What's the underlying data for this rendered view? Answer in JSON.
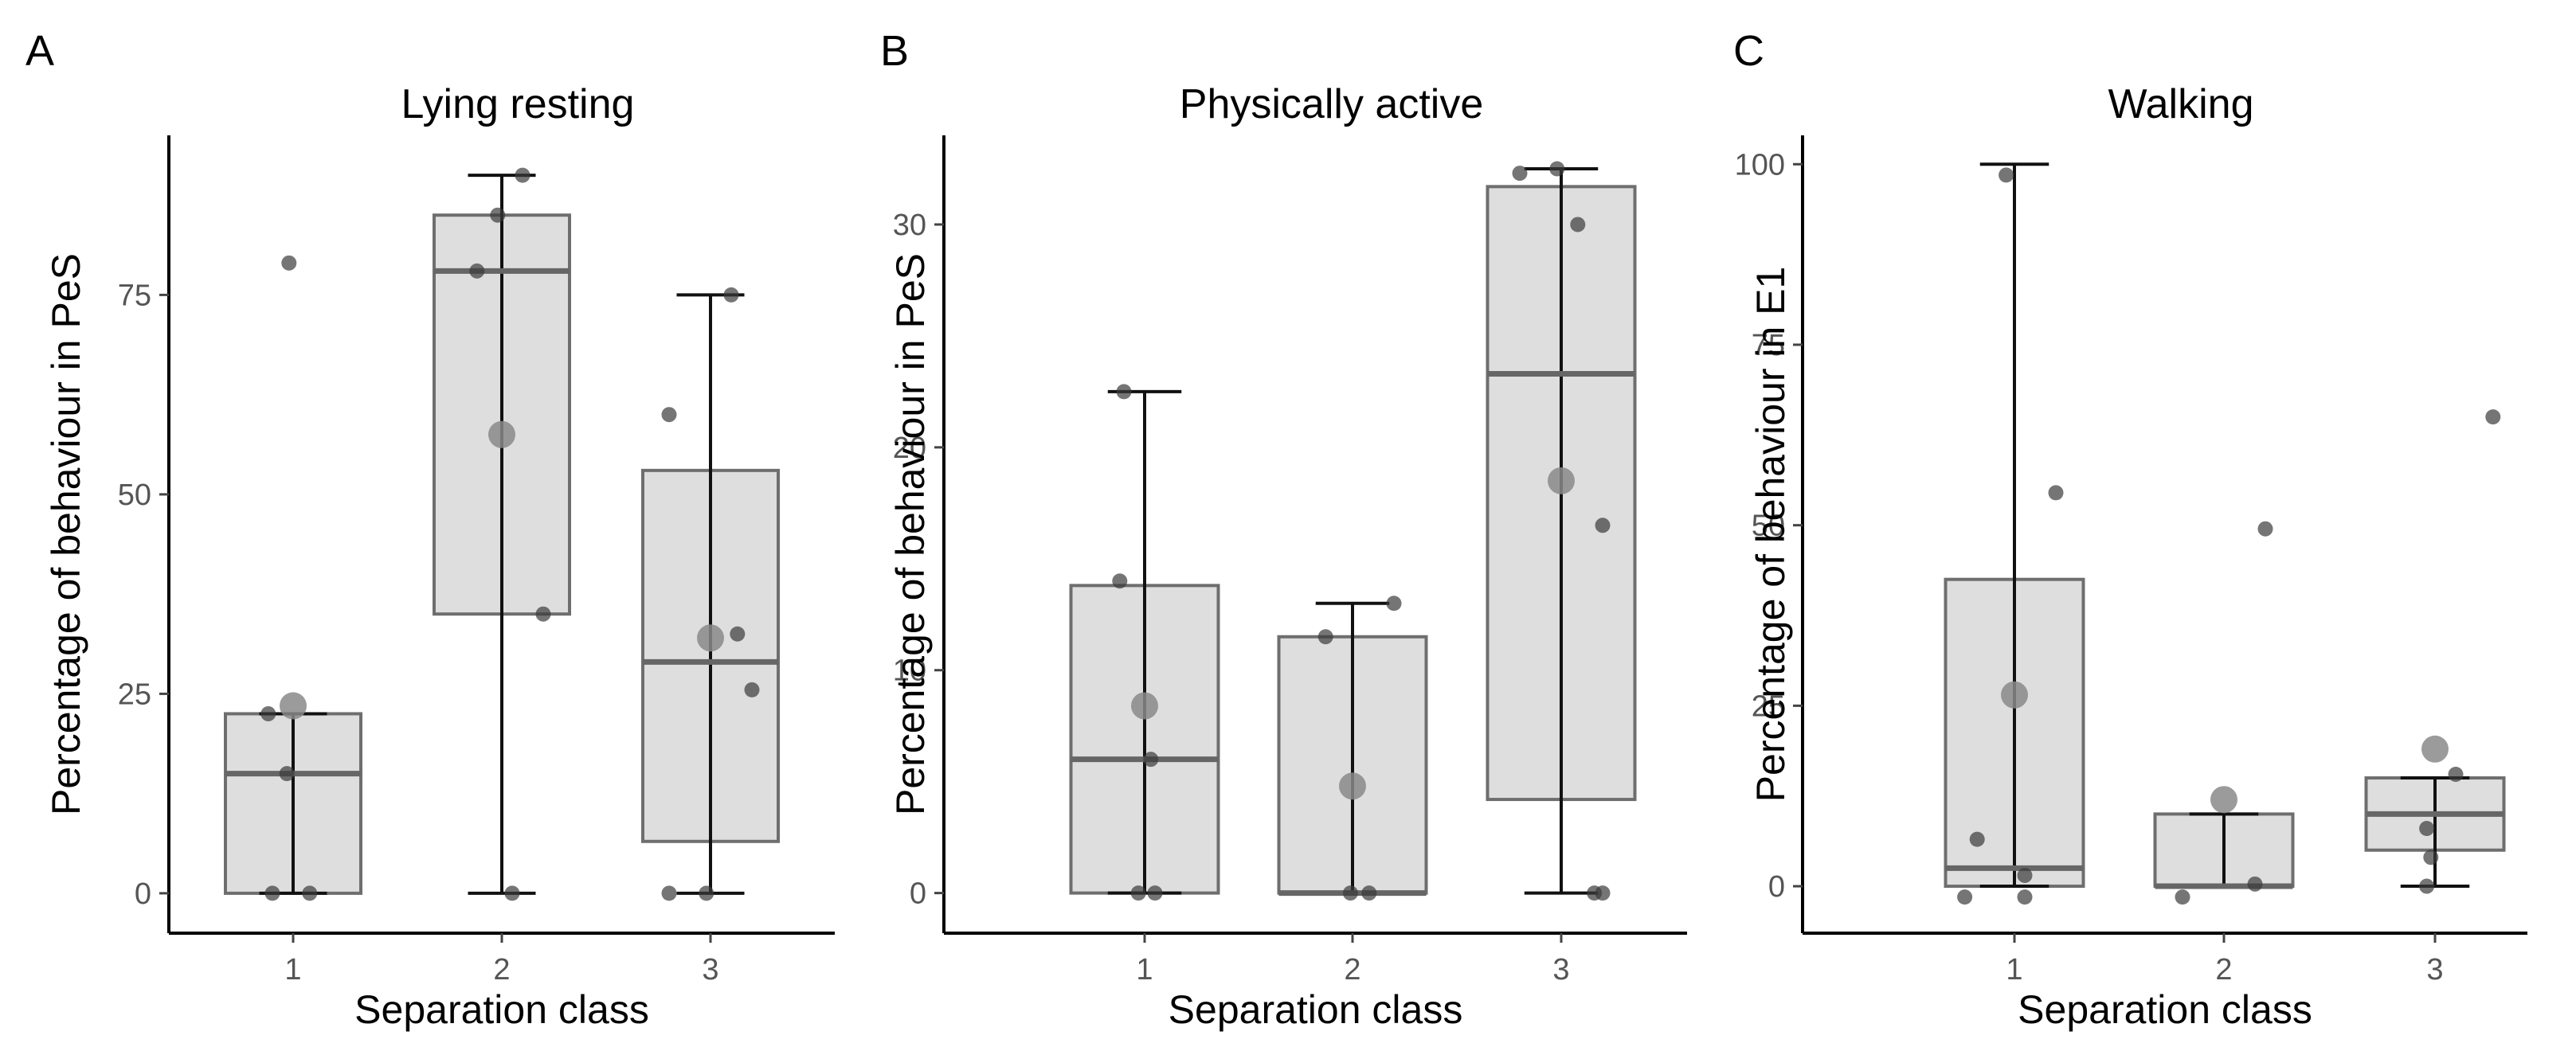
{
  "chart_data": [
    {
      "type": "box",
      "panel": "A",
      "title": "Lying resting",
      "xlabel": "Separation class",
      "ylabel": "Percentage of behaviour in PeS",
      "ylim": [
        -5,
        95
      ],
      "yticks": [
        0,
        25,
        50,
        75
      ],
      "categories": [
        "1",
        "2",
        "3"
      ],
      "boxes": [
        {
          "category": "1",
          "whisker_low": 0,
          "q1": 0,
          "median": 15,
          "q3": 22.5,
          "whisker_high": 22.5,
          "mean": 23.5
        },
        {
          "category": "2",
          "whisker_low": 0,
          "q1": 35,
          "median": 78,
          "q3": 85,
          "whisker_high": 90,
          "mean": 57.5
        },
        {
          "category": "3",
          "whisker_low": 0,
          "q1": 6.5,
          "median": 29,
          "q3": 53,
          "whisker_high": 75,
          "mean": 32
        }
      ],
      "points": [
        {
          "category": "1",
          "jitter": -0.02,
          "value": 79
        },
        {
          "category": "1",
          "jitter": -0.12,
          "value": 22.5
        },
        {
          "category": "1",
          "jitter": -0.03,
          "value": 15
        },
        {
          "category": "1",
          "jitter": -0.1,
          "value": 0
        },
        {
          "category": "1",
          "jitter": 0.08,
          "value": 0
        },
        {
          "category": "2",
          "jitter": 0.1,
          "value": 90
        },
        {
          "category": "2",
          "jitter": -0.02,
          "value": 85
        },
        {
          "category": "2",
          "jitter": -0.12,
          "value": 78
        },
        {
          "category": "2",
          "jitter": 0.2,
          "value": 35
        },
        {
          "category": "2",
          "jitter": 0.05,
          "value": 0
        },
        {
          "category": "3",
          "jitter": 0.1,
          "value": 75
        },
        {
          "category": "3",
          "jitter": -0.2,
          "value": 60
        },
        {
          "category": "3",
          "jitter": 0.13,
          "value": 32.5
        },
        {
          "category": "3",
          "jitter": 0.2,
          "value": 25.5
        },
        {
          "category": "3",
          "jitter": -0.2,
          "value": 0
        },
        {
          "category": "3",
          "jitter": -0.02,
          "value": 0
        }
      ]
    },
    {
      "type": "box",
      "panel": "B",
      "title": "Physically active",
      "xlabel": "Separation class",
      "ylabel": "Percentage of behaviour in PeS",
      "ylim": [
        -1.8,
        34
      ],
      "yticks": [
        0,
        10,
        20,
        30
      ],
      "categories": [
        "1",
        "2",
        "3"
      ],
      "boxes": [
        {
          "category": "1",
          "whisker_low": 0,
          "q1": 0,
          "median": 6,
          "q3": 13.8,
          "whisker_high": 22.5,
          "mean": 8.4
        },
        {
          "category": "2",
          "whisker_low": 0,
          "q1": 0,
          "median": 0,
          "q3": 11.5,
          "whisker_high": 13,
          "mean": 4.8
        },
        {
          "category": "3",
          "whisker_low": 0,
          "q1": 4.2,
          "median": 23.3,
          "q3": 31.7,
          "whisker_high": 32.5,
          "mean": 18.5
        }
      ],
      "points": [
        {
          "category": "1",
          "jitter": -0.1,
          "value": 22.5
        },
        {
          "category": "1",
          "jitter": -0.12,
          "value": 14
        },
        {
          "category": "1",
          "jitter": 0.03,
          "value": 6
        },
        {
          "category": "1",
          "jitter": -0.03,
          "value": 0
        },
        {
          "category": "1",
          "jitter": 0.05,
          "value": 0
        },
        {
          "category": "2",
          "jitter": 0.2,
          "value": 13
        },
        {
          "category": "2",
          "jitter": -0.13,
          "value": 11.5
        },
        {
          "category": "2",
          "jitter": -0.01,
          "value": 0
        },
        {
          "category": "2",
          "jitter": 0.08,
          "value": 0
        },
        {
          "category": "3",
          "jitter": -0.2,
          "value": 32.3
        },
        {
          "category": "3",
          "jitter": -0.02,
          "value": 32.5
        },
        {
          "category": "3",
          "jitter": 0.08,
          "value": 30
        },
        {
          "category": "3",
          "jitter": 0.2,
          "value": 16.5
        },
        {
          "category": "3",
          "jitter": 0.16,
          "value": 0
        },
        {
          "category": "3",
          "jitter": 0.2,
          "value": 0
        }
      ]
    },
    {
      "type": "box",
      "panel": "C",
      "title": "Walking",
      "xlabel": "Separation class",
      "ylabel": "Percentage of behaviour in E1",
      "ylim": [
        -6.5,
        104
      ],
      "yticks": [
        0,
        25,
        50,
        75,
        100
      ],
      "categories": [
        "1",
        "2",
        "3"
      ],
      "boxes": [
        {
          "category": "1",
          "whisker_low": 0,
          "q1": 0,
          "median": 2.5,
          "q3": 42.5,
          "whisker_high": 100,
          "mean": 26.5
        },
        {
          "category": "2",
          "whisker_low": 0,
          "q1": 0,
          "median": 0,
          "q3": 10,
          "whisker_high": 10,
          "mean": 12
        },
        {
          "category": "3",
          "whisker_low": 0,
          "q1": 5,
          "median": 10,
          "q3": 15,
          "whisker_high": 15,
          "mean": 19
        }
      ],
      "points": [
        {
          "category": "1",
          "jitter": -0.04,
          "value": 98.5
        },
        {
          "category": "1",
          "jitter": 0.2,
          "value": 54.5
        },
        {
          "category": "1",
          "jitter": -0.18,
          "value": 6.5
        },
        {
          "category": "1",
          "jitter": 0.05,
          "value": 1.5
        },
        {
          "category": "1",
          "jitter": -0.24,
          "value": -1.5
        },
        {
          "category": "1",
          "jitter": 0.05,
          "value": -1.5
        },
        {
          "category": "2",
          "jitter": 0.2,
          "value": 49.5
        },
        {
          "category": "2",
          "jitter": -0.2,
          "value": -1.5
        },
        {
          "category": "2",
          "jitter": 0.15,
          "value": 0.3
        },
        {
          "category": "3",
          "jitter": 0.28,
          "value": 65
        },
        {
          "category": "3",
          "jitter": 0.1,
          "value": 15.5
        },
        {
          "category": "3",
          "jitter": -0.04,
          "value": 8
        },
        {
          "category": "3",
          "jitter": -0.02,
          "value": 4
        },
        {
          "category": "3",
          "jitter": -0.04,
          "value": 0
        }
      ]
    }
  ]
}
